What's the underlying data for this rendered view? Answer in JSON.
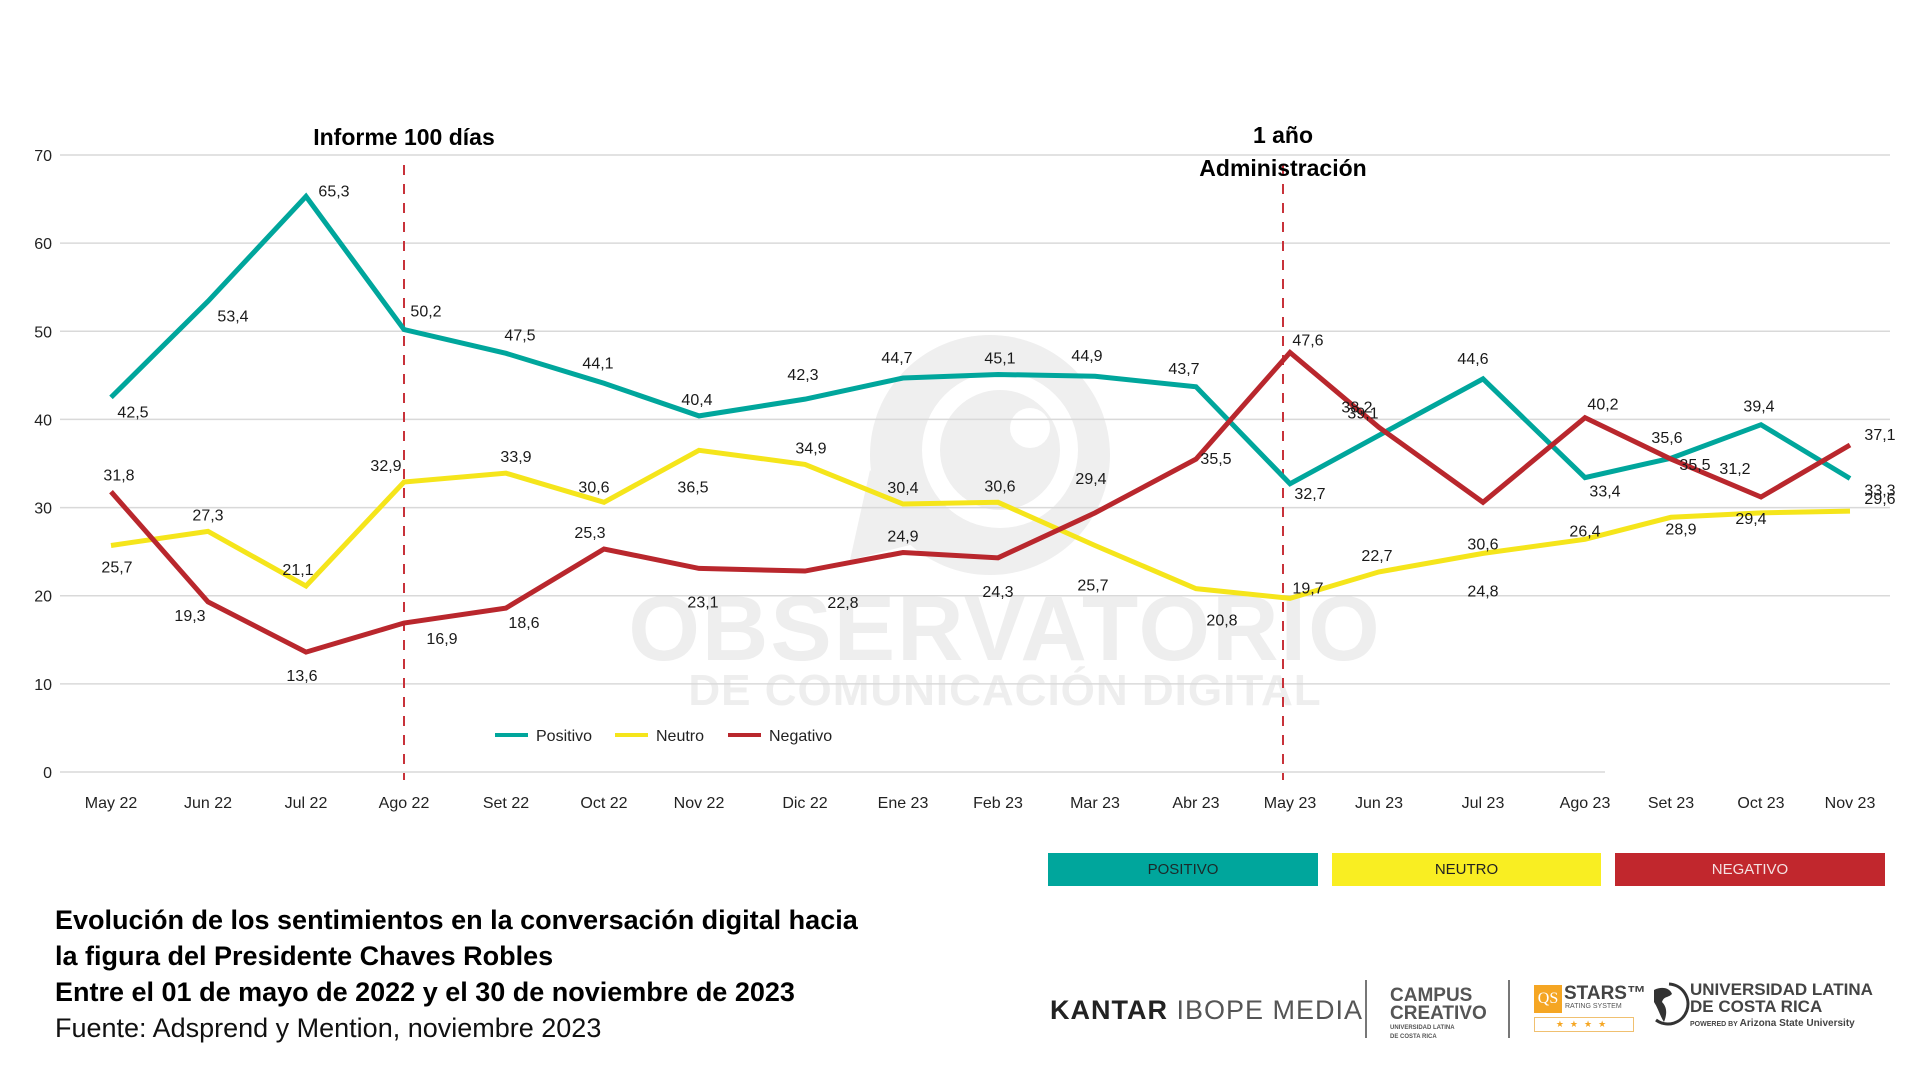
{
  "chart_data": {
    "type": "line",
    "title": "Evolución de los sentimientos en la conversación digital hacia la figura del Presidente Chaves Robles",
    "xlabel": "",
    "ylabel": "",
    "ylim": [
      0,
      70
    ],
    "yticks": [
      "0",
      "10",
      "20",
      "30",
      "40",
      "50",
      "60",
      "70"
    ],
    "grid": true,
    "legend_position": "bottom-center",
    "categories": [
      "May 22",
      "Jun 22",
      "Jul 22",
      "Ago 22",
      "Set 22",
      "Oct 22",
      "Nov 22",
      "Dic 22",
      "Ene 23",
      "Feb 23",
      "Mar 23",
      "Abr 23",
      "May 23",
      "Jun 23",
      "Jul 23",
      "Ago 23",
      "Set 23",
      "Oct 23",
      "Nov 23"
    ],
    "series": [
      {
        "name": "Positivo",
        "color": "#00a69c",
        "values": [
          42.5,
          53.4,
          65.3,
          50.2,
          47.5,
          44.1,
          40.4,
          42.3,
          44.7,
          45.1,
          44.9,
          43.7,
          32.7,
          38.2,
          44.6,
          33.4,
          35.6,
          39.4,
          33.3
        ],
        "labels": [
          "42,5",
          "53,4",
          "65,3",
          "50,2",
          "47,5",
          "44,1",
          "40,4",
          "42,3",
          "44,7",
          "45,1",
          "44,9",
          "43,7",
          "32,7",
          "38,2",
          "44,6",
          "33,4",
          "35,6",
          "39,4",
          "33,3"
        ]
      },
      {
        "name": "Neutro",
        "color": "#f5e51b",
        "values": [
          25.7,
          27.3,
          21.1,
          32.9,
          33.9,
          30.6,
          36.5,
          34.9,
          30.4,
          30.6,
          25.7,
          20.8,
          19.7,
          22.7,
          24.8,
          26.4,
          28.9,
          29.4,
          29.6
        ],
        "labels": [
          "25,7",
          "27,3",
          "21,1",
          "32,9",
          "33,9",
          "30,6",
          "36,5",
          "34,9",
          "30,4",
          "30,6",
          "25,7",
          "20,8",
          "19,7",
          "22,7",
          "24,8",
          "26,4",
          "28,9",
          "29,4",
          "29,6"
        ]
      },
      {
        "name": "Negativo",
        "color": "#b9272d",
        "values": [
          31.8,
          19.3,
          13.6,
          16.9,
          18.6,
          25.3,
          23.1,
          22.8,
          24.9,
          24.3,
          29.4,
          35.5,
          47.6,
          39.1,
          30.6,
          40.2,
          35.5,
          31.2,
          37.1
        ],
        "labels": [
          "31,8",
          "19,3",
          "13,6",
          "16,9",
          "18,6",
          "25,3",
          "23,1",
          "22,8",
          "24,9",
          "24,3",
          "29,4",
          "35,5",
          "47,6",
          "39,1",
          "30,6",
          "40,2",
          "35,5",
          "31,2",
          "37,1"
        ]
      }
    ],
    "annotations": [
      {
        "at": "Ago 22",
        "text": [
          "Informe 100 días"
        ]
      },
      {
        "at": "May 23",
        "text": [
          "1 año",
          "Administración"
        ]
      }
    ],
    "annotation_line_color": "#c8323a",
    "watermark": [
      "OBSERVATORIO",
      "DE COMUNICACIÓN DIGITAL"
    ]
  },
  "legend_bands": [
    {
      "label": "POSITIVO",
      "color": "#00a69c"
    },
    {
      "label": "NEUTRO",
      "color": "#f9ee22"
    },
    {
      "label": "NEGATIVO",
      "color": "#c1272d"
    }
  ],
  "caption": {
    "line1": "Evolución de los sentimientos en la conversación digital hacia",
    "line2": "la figura del Presidente Chaves Robles",
    "line3": "Entre el 01 de mayo de 2022 y el 30 de noviembre de 2023",
    "source": "Fuente: Adsprend y Mention,  noviembre 2023"
  },
  "logos": {
    "kantar_bold": "KANTAR",
    "kantar_rest": "IBOPE MEDIA",
    "campus_1": "CAMPUS",
    "campus_2": "CREATIVO",
    "campus_sub1": "UNIVERSIDAD LATINA",
    "campus_sub2": "DE COSTA RICA",
    "qs_box": "QS",
    "qs_stars": "STARS™",
    "qs_rating": "RATING SYSTEM",
    "qs_star_row": "★★★★",
    "ulat_1": "UNIVERSIDAD LATINA",
    "ulat_2": "DE COSTA RICA",
    "ulat_powered": "POWERED BY",
    "ulat_asu": "Arizona State University"
  }
}
